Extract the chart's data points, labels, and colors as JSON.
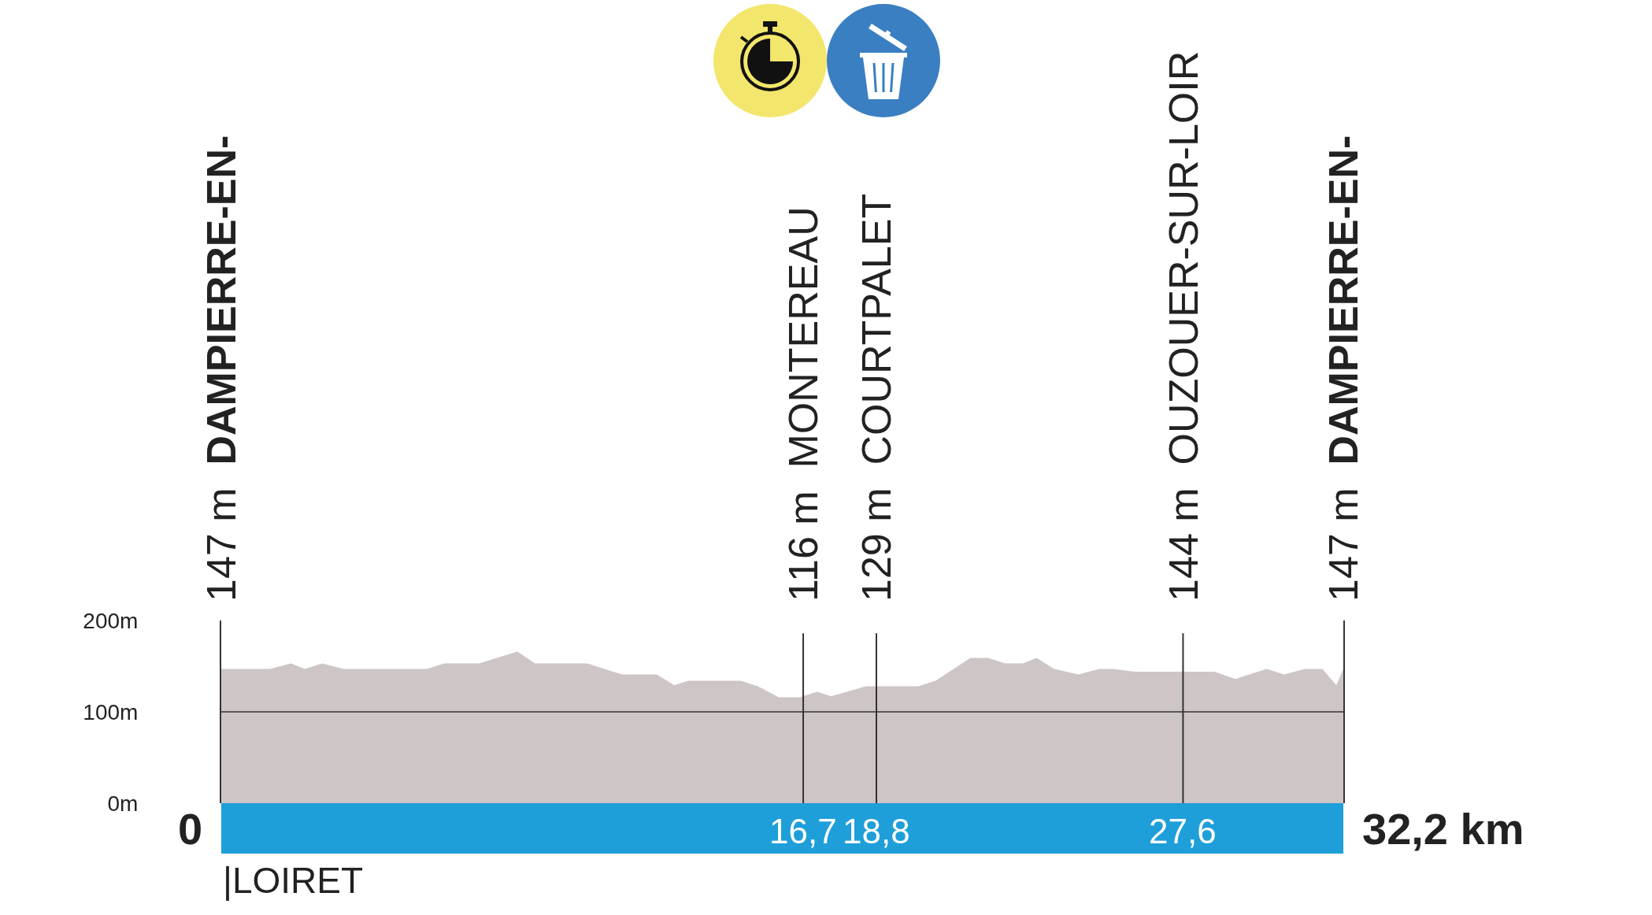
{
  "chart_data": {
    "type": "area",
    "x": [
      0,
      1.4,
      2.0,
      2.4,
      2.9,
      3.5,
      5.9,
      6.4,
      7.4,
      8.5,
      9.0,
      10.5,
      11.5,
      12.5,
      13.0,
      13.4,
      14.9,
      15.4,
      16.0,
      16.6,
      17.1,
      17.5,
      18.5,
      20.0,
      20.5,
      21.5,
      22.0,
      22.5,
      23.0,
      23.4,
      23.9,
      24.6,
      25.2,
      25.6,
      26.2,
      28.5,
      29.1,
      30.0,
      30.5,
      31.1,
      31.6,
      32.0,
      32.2
    ],
    "series": [
      {
        "color": "#cdc5c6",
        "values": [
          147,
          147,
          153,
          147,
          153,
          147,
          147,
          153,
          153,
          166,
          153,
          153,
          141,
          141,
          129,
          134,
          134,
          128,
          116,
          116,
          122,
          117,
          128,
          128,
          134,
          159,
          159,
          153,
          153,
          159,
          147,
          141,
          147,
          147,
          144,
          144,
          136,
          147,
          141,
          147,
          147,
          129,
          147
        ]
      }
    ],
    "xlim": [
      0,
      32.2
    ],
    "xticks": [
      {
        "value": 16.7,
        "label": "16,7"
      },
      {
        "value": 18.8,
        "label": "18,8"
      },
      {
        "value": 27.6,
        "label": "27,6"
      }
    ],
    "ylim": [
      0,
      200
    ],
    "yticks": [
      {
        "value": 0,
        "label": "0m"
      },
      {
        "value": 100,
        "label": "100m"
      },
      {
        "value": 200,
        "label": "200m"
      }
    ],
    "ref_lines": [
      {
        "axis": "x",
        "value": 16.7,
        "label": "116 m MONTEREAU",
        "color": "#333333"
      },
      {
        "axis": "x",
        "value": 18.8,
        "label": "129 m COURTPALET",
        "color": "#333333"
      },
      {
        "axis": "x",
        "value": 27.6,
        "label": "144 m OUZOUER-SUR-LOIR",
        "color": "#333333"
      },
      {
        "axis": "y",
        "value": 100,
        "color": "#333333"
      }
    ],
    "annotations": [
      "147 m DAMPIERRE-EN-",
      "147 m DAMPIERRE-EN-",
      "0",
      "32,2 km",
      "|LOIRET"
    ]
  }
}
